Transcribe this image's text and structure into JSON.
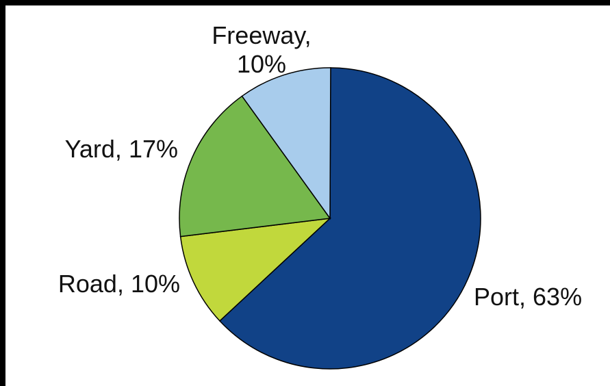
{
  "chart_data": {
    "type": "pie",
    "start": "top",
    "direction": "clockwise",
    "slices": [
      {
        "label": "Port",
        "value": 63,
        "color": "#114287",
        "label_text": "Port, 63%"
      },
      {
        "label": "Road",
        "value": 10,
        "color": "#c1d83c",
        "label_text": "Road, 10%"
      },
      {
        "label": "Yard",
        "value": 17,
        "color": "#76b84c",
        "label_text": "Yard, 17%"
      },
      {
        "label": "Freeway",
        "value": 10,
        "color": "#a8ccec",
        "label_text": "Freeway,\n10%"
      }
    ],
    "title": "",
    "legend": "none"
  }
}
